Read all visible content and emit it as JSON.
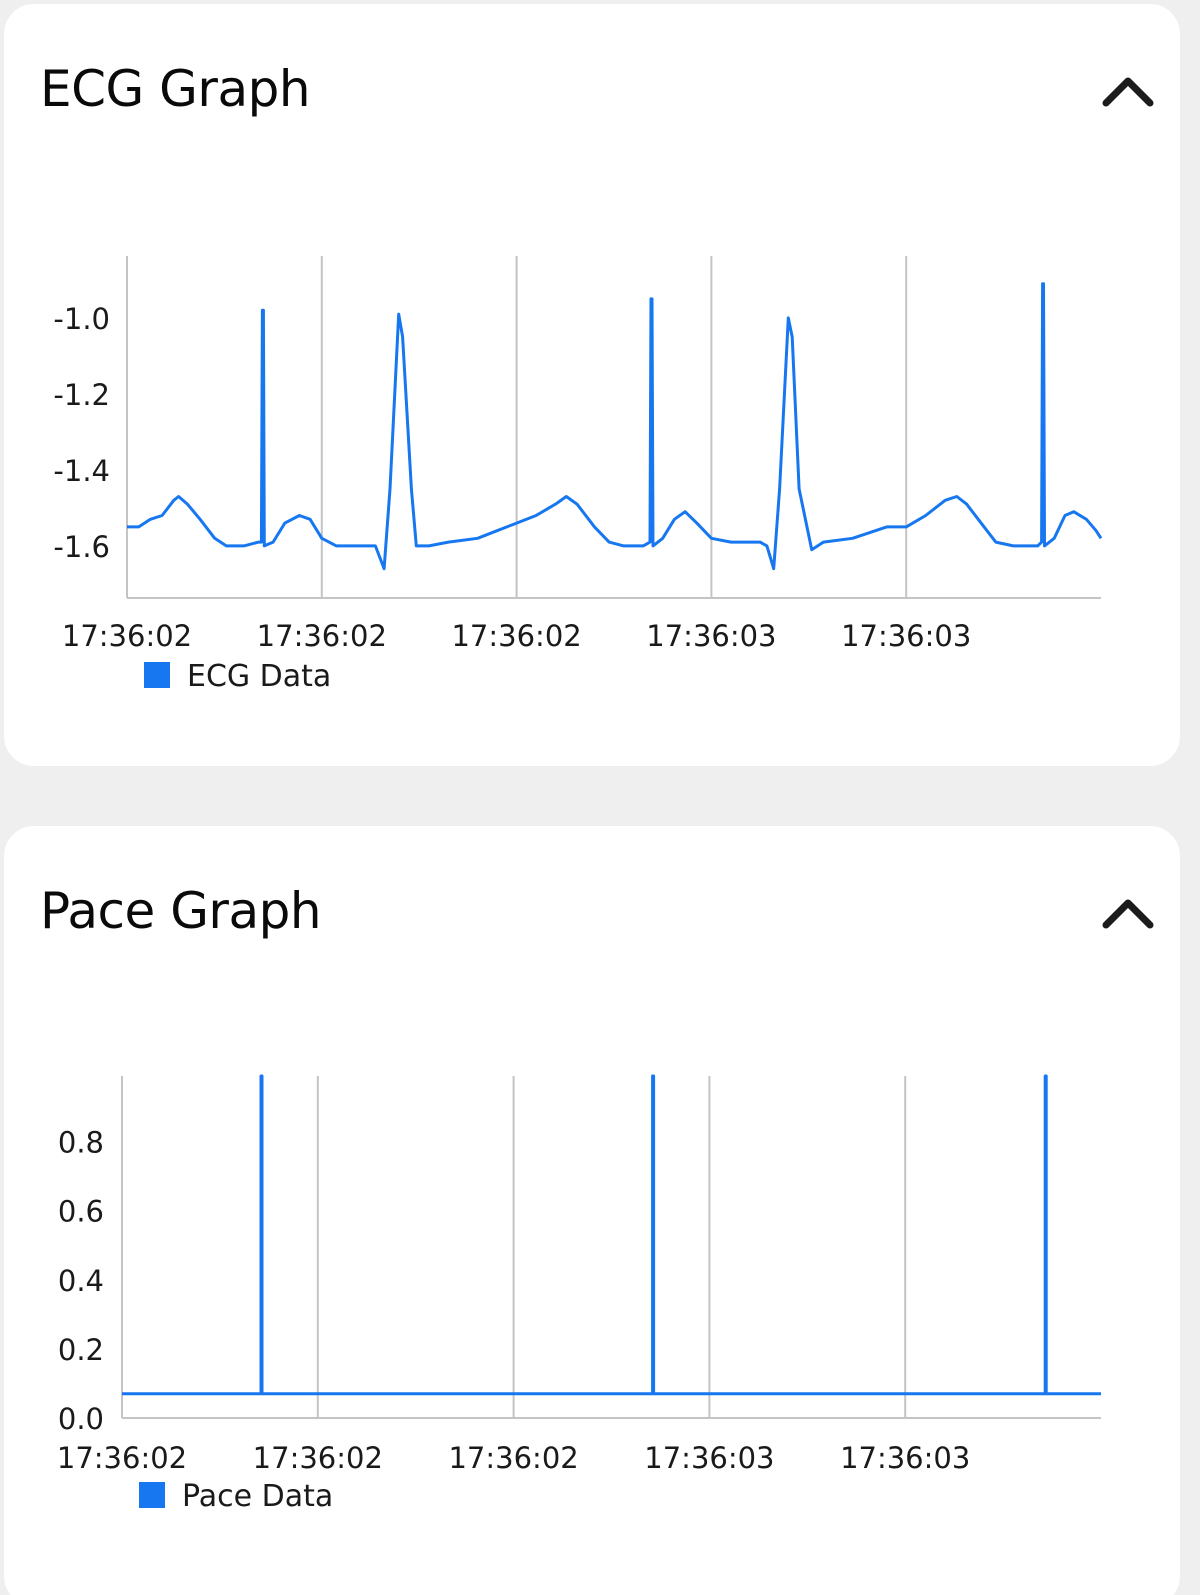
{
  "page": {
    "background": "#efefef",
    "card_background": "#ffffff",
    "accent_color": "#1677f0",
    "grid_color": "#c4c4c4"
  },
  "cards": [
    {
      "id": "ecg",
      "title": "ECG Graph",
      "toggle_icon": "chevron-up-icon",
      "expanded": true
    },
    {
      "id": "pace",
      "title": "Pace Graph",
      "toggle_icon": "chevron-up-icon",
      "expanded": true
    }
  ],
  "chart_data": [
    {
      "type": "line",
      "title": "ECG Graph",
      "xlabel": "",
      "ylabel": "",
      "legend": [
        {
          "label": "ECG Data",
          "color": "#1677f0"
        }
      ],
      "legend_position": "bottom-left",
      "grid": {
        "vertical": true,
        "horizontal": false
      },
      "x_tick_labels": [
        "17:36:02",
        "17:36:02",
        "17:36:02",
        "17:36:03",
        "17:36:03"
      ],
      "y_tick_labels": [
        "-1.0",
        "-1.2",
        "-1.4",
        "-1.6"
      ],
      "y_ticks": [
        -1.0,
        -1.2,
        -1.4,
        -1.6
      ],
      "ylim": [
        -1.737,
        -0.837
      ],
      "x_range_note": "x is fraction of plot width (0..1); gridlines at 0, 0.2, 0.4, 0.6, 0.8",
      "series": [
        {
          "name": "ECG Data",
          "color": "#1677f0",
          "points": [
            [
              0.0,
              -1.55
            ],
            [
              0.012,
              -1.55
            ],
            [
              0.024,
              -1.53
            ],
            [
              0.036,
              -1.52
            ],
            [
              0.048,
              -1.48
            ],
            [
              0.053,
              -1.47
            ],
            [
              0.062,
              -1.49
            ],
            [
              0.075,
              -1.53
            ],
            [
              0.09,
              -1.58
            ],
            [
              0.102,
              -1.6
            ],
            [
              0.12,
              -1.6
            ],
            [
              0.135,
              -1.59
            ],
            [
              0.138,
              -1.59
            ],
            [
              0.139,
              -0.98
            ],
            [
              0.14,
              -0.98
            ],
            [
              0.141,
              -1.6
            ],
            [
              0.15,
              -1.59
            ],
            [
              0.162,
              -1.54
            ],
            [
              0.177,
              -1.52
            ],
            [
              0.188,
              -1.53
            ],
            [
              0.2,
              -1.58
            ],
            [
              0.215,
              -1.6
            ],
            [
              0.24,
              -1.6
            ],
            [
              0.255,
              -1.6
            ],
            [
              0.264,
              -1.66
            ],
            [
              0.27,
              -1.45
            ],
            [
              0.279,
              -0.99
            ],
            [
              0.283,
              -1.05
            ],
            [
              0.292,
              -1.45
            ],
            [
              0.297,
              -1.6
            ],
            [
              0.31,
              -1.6
            ],
            [
              0.33,
              -1.59
            ],
            [
              0.36,
              -1.58
            ],
            [
              0.38,
              -1.56
            ],
            [
              0.4,
              -1.54
            ],
            [
              0.42,
              -1.52
            ],
            [
              0.44,
              -1.49
            ],
            [
              0.451,
              -1.47
            ],
            [
              0.462,
              -1.49
            ],
            [
              0.48,
              -1.55
            ],
            [
              0.495,
              -1.59
            ],
            [
              0.51,
              -1.6
            ],
            [
              0.53,
              -1.6
            ],
            [
              0.537,
              -1.59
            ],
            [
              0.538,
              -0.95
            ],
            [
              0.539,
              -0.95
            ],
            [
              0.54,
              -1.6
            ],
            [
              0.55,
              -1.58
            ],
            [
              0.562,
              -1.53
            ],
            [
              0.573,
              -1.51
            ],
            [
              0.585,
              -1.54
            ],
            [
              0.6,
              -1.58
            ],
            [
              0.62,
              -1.59
            ],
            [
              0.65,
              -1.59
            ],
            [
              0.657,
              -1.6
            ],
            [
              0.664,
              -1.66
            ],
            [
              0.67,
              -1.45
            ],
            [
              0.679,
              -1.0
            ],
            [
              0.683,
              -1.05
            ],
            [
              0.69,
              -1.45
            ],
            [
              0.703,
              -1.61
            ],
            [
              0.715,
              -1.59
            ],
            [
              0.745,
              -1.58
            ],
            [
              0.78,
              -1.55
            ],
            [
              0.8,
              -1.55
            ],
            [
              0.82,
              -1.52
            ],
            [
              0.84,
              -1.48
            ],
            [
              0.852,
              -1.47
            ],
            [
              0.862,
              -1.49
            ],
            [
              0.88,
              -1.55
            ],
            [
              0.892,
              -1.59
            ],
            [
              0.91,
              -1.6
            ],
            [
              0.935,
              -1.6
            ],
            [
              0.939,
              -1.59
            ],
            [
              0.94,
              -0.91
            ],
            [
              0.941,
              -0.91
            ],
            [
              0.942,
              -1.6
            ],
            [
              0.952,
              -1.58
            ],
            [
              0.963,
              -1.52
            ],
            [
              0.972,
              -1.51
            ],
            [
              0.985,
              -1.53
            ],
            [
              0.995,
              -1.56
            ],
            [
              1.0,
              -1.58
            ]
          ]
        }
      ]
    },
    {
      "type": "line",
      "title": "Pace Graph",
      "xlabel": "",
      "ylabel": "",
      "legend": [
        {
          "label": "Pace Data",
          "color": "#1677f0"
        }
      ],
      "legend_position": "bottom-left",
      "grid": {
        "vertical": true,
        "horizontal": false
      },
      "x_tick_labels": [
        "17:36:02",
        "17:36:02",
        "17:36:02",
        "17:36:03",
        "17:36:03"
      ],
      "y_tick_labels": [
        "0.8",
        "0.6",
        "0.4",
        "0.2",
        "0.0"
      ],
      "y_ticks": [
        0.8,
        0.6,
        0.4,
        0.2,
        0.0
      ],
      "ylim": [
        0.0,
        0.99
      ],
      "x_range_note": "x is fraction of plot width (0..1); gridlines at 0, 0.2, 0.4, 0.6, 0.8",
      "series": [
        {
          "name": "Pace Data",
          "color": "#1677f0",
          "points": [
            [
              0.0,
              0.07
            ],
            [
              0.142,
              0.07
            ],
            [
              0.142,
              0.99
            ],
            [
              0.143,
              0.99
            ],
            [
              0.143,
              0.07
            ],
            [
              0.542,
              0.07
            ],
            [
              0.542,
              0.99
            ],
            [
              0.543,
              0.99
            ],
            [
              0.543,
              0.07
            ],
            [
              0.943,
              0.07
            ],
            [
              0.943,
              0.99
            ],
            [
              0.944,
              0.99
            ],
            [
              0.944,
              0.07
            ],
            [
              1.0,
              0.07
            ]
          ]
        }
      ]
    }
  ]
}
